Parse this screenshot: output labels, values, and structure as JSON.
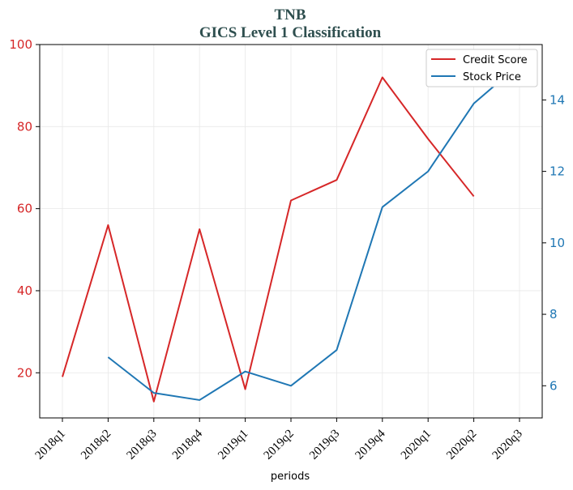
{
  "chart_data": {
    "type": "line",
    "title": "TNB",
    "subtitle": "GICS Level 1 Classification",
    "xlabel": "periods",
    "categories": [
      "2018q1",
      "2018q2",
      "2018q3",
      "2018q4",
      "2019q1",
      "2019q2",
      "2019q3",
      "2019q4",
      "2020q1",
      "2020q2",
      "2020q3"
    ],
    "series": [
      {
        "name": "Credit Score",
        "axis": "left",
        "color": "#d62728",
        "values": [
          19,
          56,
          13,
          55,
          16,
          62,
          67,
          92,
          77,
          63,
          null
        ]
      },
      {
        "name": "Stock Price",
        "axis": "right",
        "color": "#1f77b4",
        "values": [
          null,
          6.8,
          5.8,
          5.6,
          6.4,
          6.0,
          7.0,
          11.0,
          12.0,
          13.9,
          15.0
        ]
      }
    ],
    "y_left": {
      "lim": [
        9,
        100
      ],
      "ticks": [
        20,
        40,
        60,
        80,
        100
      ],
      "color": "#d62728"
    },
    "y_right": {
      "lim": [
        5.1,
        15.55
      ],
      "ticks": [
        6,
        8,
        10,
        12,
        14
      ],
      "color": "#1f77b4"
    },
    "grid": true,
    "legend": "top-right"
  }
}
